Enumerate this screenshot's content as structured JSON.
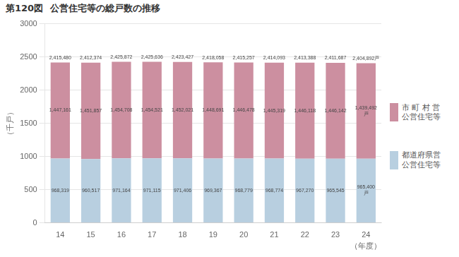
{
  "chart_data": {
    "type": "bar",
    "title": "公営住宅等の総戸数の推移",
    "annotations": [
      {
        "text": "第120図"
      }
    ],
    "xlabel": "（年度）",
    "ylabel": "（千戸）",
    "categories": [
      "14",
      "15",
      "16",
      "17",
      "18",
      "19",
      "20",
      "21",
      "22",
      "23",
      "24"
    ],
    "series": [
      {
        "name": "都道府県営\n公営住宅等",
        "color": "#b8cfe0",
        "values": [
          968.319,
          960.517,
          971.164,
          971.115,
          971.406,
          969.367,
          968.779,
          968.774,
          967.27,
          965.545,
          965.4
        ],
        "value_labels": [
          "968,319",
          "960,517",
          "971,164",
          "971,115",
          "971,406",
          "969,367",
          "968,779",
          "968,774",
          "967,270",
          "965,545",
          "965,400\n戸"
        ]
      },
      {
        "name": "市 町 村 営\n公営住宅等",
        "color": "#cc8fa0",
        "values": [
          1447.161,
          1451.857,
          1454.708,
          1454.521,
          1452.021,
          1448.691,
          1446.478,
          1445.319,
          1446.118,
          1446.142,
          1439.492
        ],
        "value_labels": [
          "1,447,161",
          "1,451,857",
          "1,454,708",
          "1,454,521",
          "1,452,021",
          "1,448,691",
          "1,446,478",
          "1,445,319",
          "1,446,118",
          "1,446,142",
          "1,439,492\n戸"
        ]
      }
    ],
    "totals": {
      "values": [
        2415.48,
        2412.374,
        2425.872,
        2425.636,
        2423.427,
        2418.058,
        2415.257,
        2414.093,
        2413.388,
        2411.687,
        2404.892
      ],
      "value_labels": [
        "2,415,480",
        "2,412,374",
        "2,425,872",
        "2,425,636",
        "2,423,427",
        "2,418,058",
        "2,415,257",
        "2,414,093",
        "2,413,388",
        "2,411,687",
        "2,404,892戸"
      ]
    },
    "ylim": [
      0,
      3000
    ],
    "yticks": [
      0,
      500,
      1000,
      1500,
      2000,
      2500,
      3000
    ],
    "stacked": true,
    "grid": true,
    "data_labels": true,
    "legend": "right"
  }
}
